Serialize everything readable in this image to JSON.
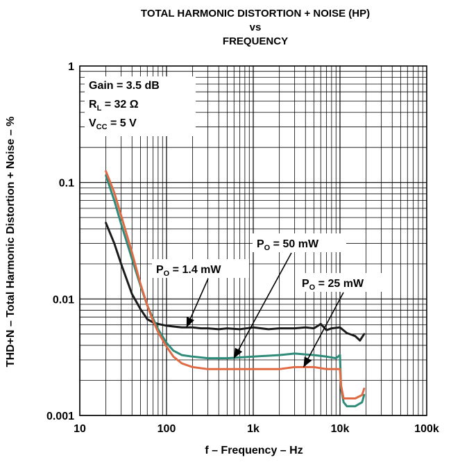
{
  "chart_data": {
    "type": "line",
    "title_lines": [
      "TOTAL HARMONIC DISTORTION + NOISE (HP)",
      "vs",
      "FREQUENCY"
    ],
    "xlabel": "f – Frequency – Hz",
    "ylabel": "THD+N – Total Harmonic Distortion + Noise – %",
    "x_scale": "log",
    "y_scale": "log",
    "xlim": [
      10,
      100000
    ],
    "ylim": [
      0.001,
      1
    ],
    "grid": true,
    "x_ticks": [
      {
        "value": 10,
        "label": "10"
      },
      {
        "value": 100,
        "label": "100"
      },
      {
        "value": 1000,
        "label": "1k"
      },
      {
        "value": 10000,
        "label": "10k"
      },
      {
        "value": 100000,
        "label": "100k"
      }
    ],
    "y_ticks": [
      {
        "value": 0.001,
        "label": "0.001"
      },
      {
        "value": 0.01,
        "label": "0.01"
      },
      {
        "value": 0.1,
        "label": "0.1"
      },
      {
        "value": 1,
        "label": "1"
      }
    ],
    "conditions": [
      {
        "main": "Gain = 3.5 dB",
        "parts": [
          {
            "t": "Gain = 3.5 dB",
            "sub": false
          }
        ]
      },
      {
        "main": "RL = 32 Ω",
        "parts": [
          {
            "t": "R",
            "sub": false
          },
          {
            "t": "L",
            "sub": true
          },
          {
            "t": " = 32 Ω",
            "sub": false
          }
        ]
      },
      {
        "main": "VCC = 5 V",
        "parts": [
          {
            "t": "V",
            "sub": false
          },
          {
            "t": "CC",
            "sub": true
          },
          {
            "t": " = 5 V",
            "sub": false
          }
        ]
      }
    ],
    "series": [
      {
        "name": "PO = 1.4 mW",
        "label_parts": [
          {
            "t": "P",
            "sub": false
          },
          {
            "t": "O",
            "sub": true
          },
          {
            "t": " = 1.4 mW",
            "sub": false
          }
        ],
        "color": "#1a1a1a",
        "x": [
          20,
          25,
          30,
          35,
          40,
          50,
          60,
          70,
          80,
          100,
          120,
          150,
          200,
          250,
          300,
          400,
          500,
          700,
          1000,
          1500,
          2000,
          3000,
          4000,
          5000,
          6000,
          7000,
          8000,
          10000,
          12000,
          15000,
          17000,
          19000
        ],
        "y": [
          0.045,
          0.03,
          0.02,
          0.0145,
          0.011,
          0.0082,
          0.0067,
          0.0063,
          0.0061,
          0.0059,
          0.0058,
          0.0057,
          0.0057,
          0.0056,
          0.0056,
          0.0055,
          0.0056,
          0.0055,
          0.0057,
          0.0055,
          0.0056,
          0.0056,
          0.0057,
          0.0056,
          0.0061,
          0.0054,
          0.0056,
          0.0057,
          0.0051,
          0.0048,
          0.0044,
          0.005
        ]
      },
      {
        "name": "PO = 50 mW",
        "label_parts": [
          {
            "t": "P",
            "sub": false
          },
          {
            "t": "O",
            "sub": true
          },
          {
            "t": " = 50 mW",
            "sub": false
          }
        ],
        "color": "#2e8b7a",
        "x": [
          20,
          25,
          30,
          40,
          50,
          60,
          70,
          80,
          100,
          120,
          150,
          200,
          300,
          500,
          1000,
          2000,
          3000,
          5000,
          7000,
          9000,
          10000,
          10300,
          11000,
          12000,
          15000,
          18000,
          19000
        ],
        "y": [
          0.115,
          0.07,
          0.044,
          0.022,
          0.013,
          0.0088,
          0.0068,
          0.0055,
          0.0042,
          0.0036,
          0.0033,
          0.0032,
          0.0031,
          0.0031,
          0.0032,
          0.0033,
          0.0034,
          0.0033,
          0.0032,
          0.0031,
          0.0033,
          0.0017,
          0.0013,
          0.0012,
          0.0012,
          0.0013,
          0.0015
        ]
      },
      {
        "name": "PO = 25 mW",
        "label_parts": [
          {
            "t": "P",
            "sub": false
          },
          {
            "t": "O",
            "sub": true
          },
          {
            "t": " = 25 mW",
            "sub": false
          }
        ],
        "color": "#e06a44",
        "x": [
          20,
          25,
          30,
          40,
          50,
          60,
          70,
          80,
          100,
          120,
          150,
          200,
          300,
          500,
          1000,
          2000,
          3000,
          5000,
          7000,
          9000,
          10000,
          10300,
          11000,
          12000,
          15000,
          18000,
          19000
        ],
        "y": [
          0.125,
          0.082,
          0.052,
          0.025,
          0.0135,
          0.0088,
          0.0065,
          0.0052,
          0.0039,
          0.0032,
          0.0028,
          0.0026,
          0.0025,
          0.0025,
          0.0025,
          0.0025,
          0.0026,
          0.0026,
          0.0025,
          0.0025,
          0.0025,
          0.0018,
          0.0014,
          0.0014,
          0.0014,
          0.0015,
          0.0017
        ]
      }
    ]
  }
}
